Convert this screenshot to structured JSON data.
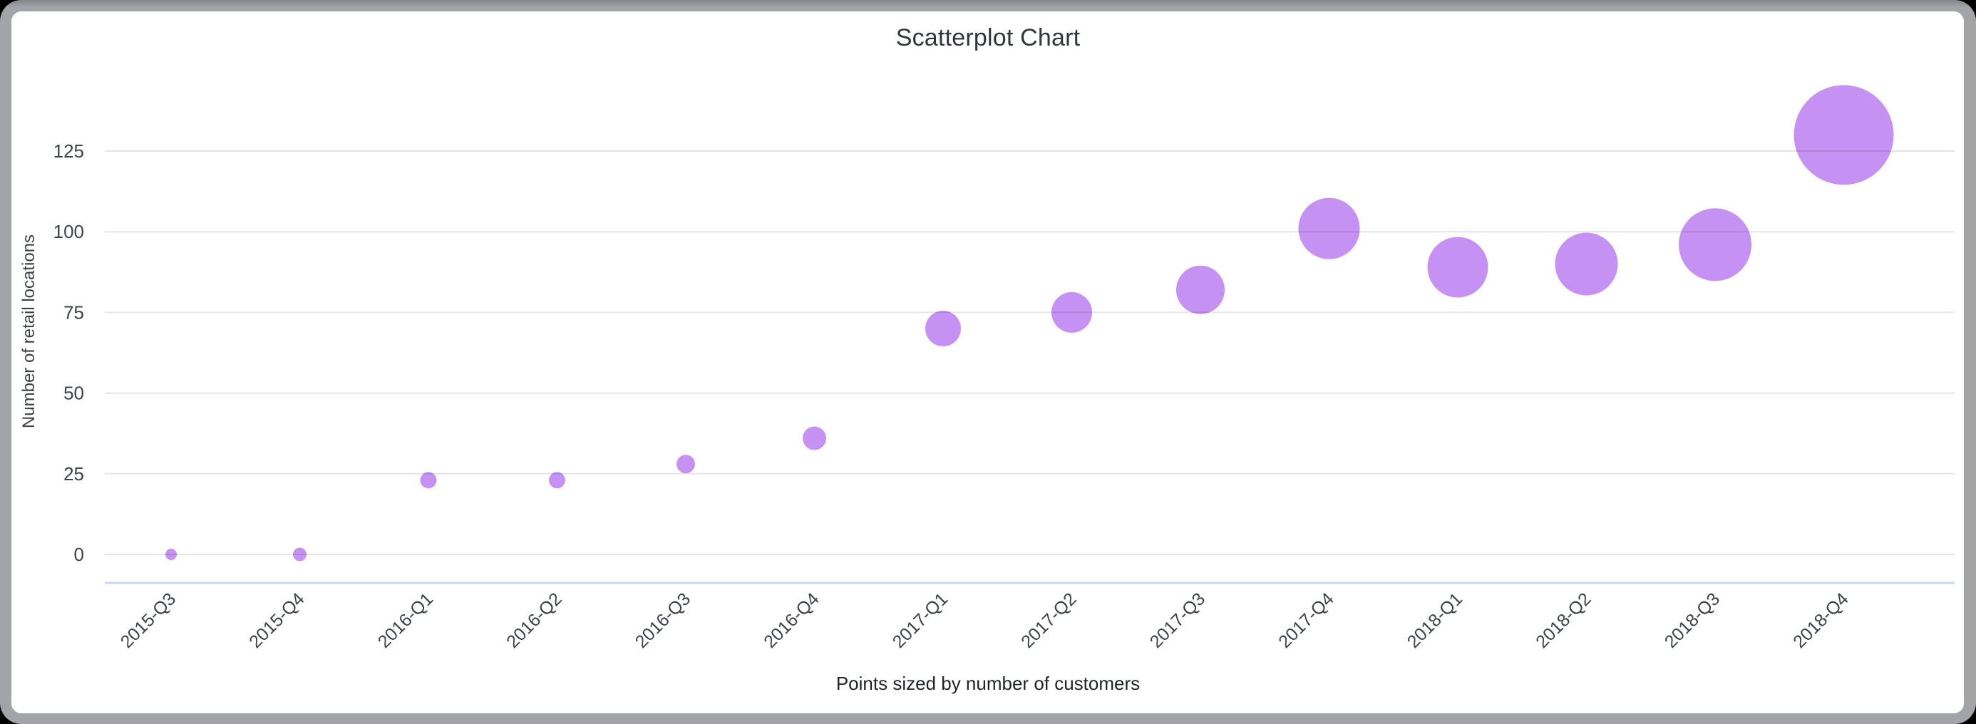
{
  "window": {
    "outer_background": "#000000",
    "frame_color": "#a2a4a8",
    "card_background": "#ffffff"
  },
  "chart_data": {
    "type": "scatter",
    "title": "Scatterplot Chart",
    "xlabel": "Points sized by number of customers",
    "ylabel": "Number of retail locations",
    "categories": [
      "2015-Q3",
      "2015-Q4",
      "2016-Q1",
      "2016-Q2",
      "2016-Q3",
      "2016-Q4",
      "2017-Q1",
      "2017-Q2",
      "2017-Q3",
      "2017-Q4",
      "2018-Q1",
      "2018-Q2",
      "2018-Q3",
      "2018-Q4"
    ],
    "series": [
      {
        "name": "Number of retail locations",
        "values": [
          0,
          0,
          23,
          23,
          28,
          36,
          70,
          75,
          82,
          101,
          89,
          90,
          96,
          130
        ],
        "point_radius_px": [
          8,
          9.5,
          11.5,
          11.5,
          13,
          16.5,
          25,
          28.5,
          34,
          43,
          42.5,
          44,
          51,
          70
        ],
        "size_encoding": "number of customers"
      }
    ],
    "y_ticks": [
      0,
      25,
      50,
      75,
      100,
      125
    ],
    "ylim": [
      0,
      137
    ],
    "grid": true,
    "legend_position": "none",
    "x_label_rotation_deg": -45,
    "point_color": "#c592f3",
    "grid_color": "rgba(0,0,0,0.10)",
    "axis_line_color": "#ccd6eb",
    "title_color": "#2f363d",
    "tick_label_color": "#3c4348",
    "caption_color": "#1f2328"
  }
}
